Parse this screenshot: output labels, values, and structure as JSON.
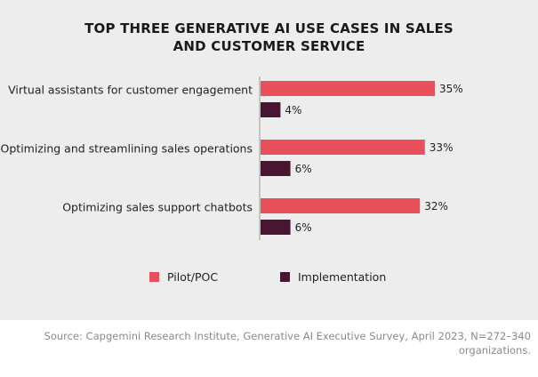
{
  "chart_data": {
    "type": "bar",
    "orientation": "horizontal",
    "title_lines": [
      "TOP THREE GENERATIVE AI USE CASES IN SALES",
      "AND CUSTOMER SERVICE"
    ],
    "categories": [
      "Virtual assistants for customer engagement",
      "Optimizing and streamlining sales operations",
      "Optimizing sales support chatbots"
    ],
    "series": [
      {
        "name": "Pilot/POC",
        "color": "#e8505b",
        "values": [
          35,
          33,
          32
        ],
        "labels": [
          "35%",
          "33%",
          "32%"
        ]
      },
      {
        "name": "Implementation",
        "color": "#4a1530",
        "values": [
          4,
          6,
          6
        ],
        "labels": [
          "4%",
          "6%",
          "6%"
        ]
      }
    ],
    "unit": "%",
    "legend_position": "bottom",
    "grid": false
  },
  "source": {
    "lines": [
      "Source: Capgemini Research Institute, Generative AI Executive Survey, April 2023, N=272–340",
      "organizations."
    ]
  }
}
